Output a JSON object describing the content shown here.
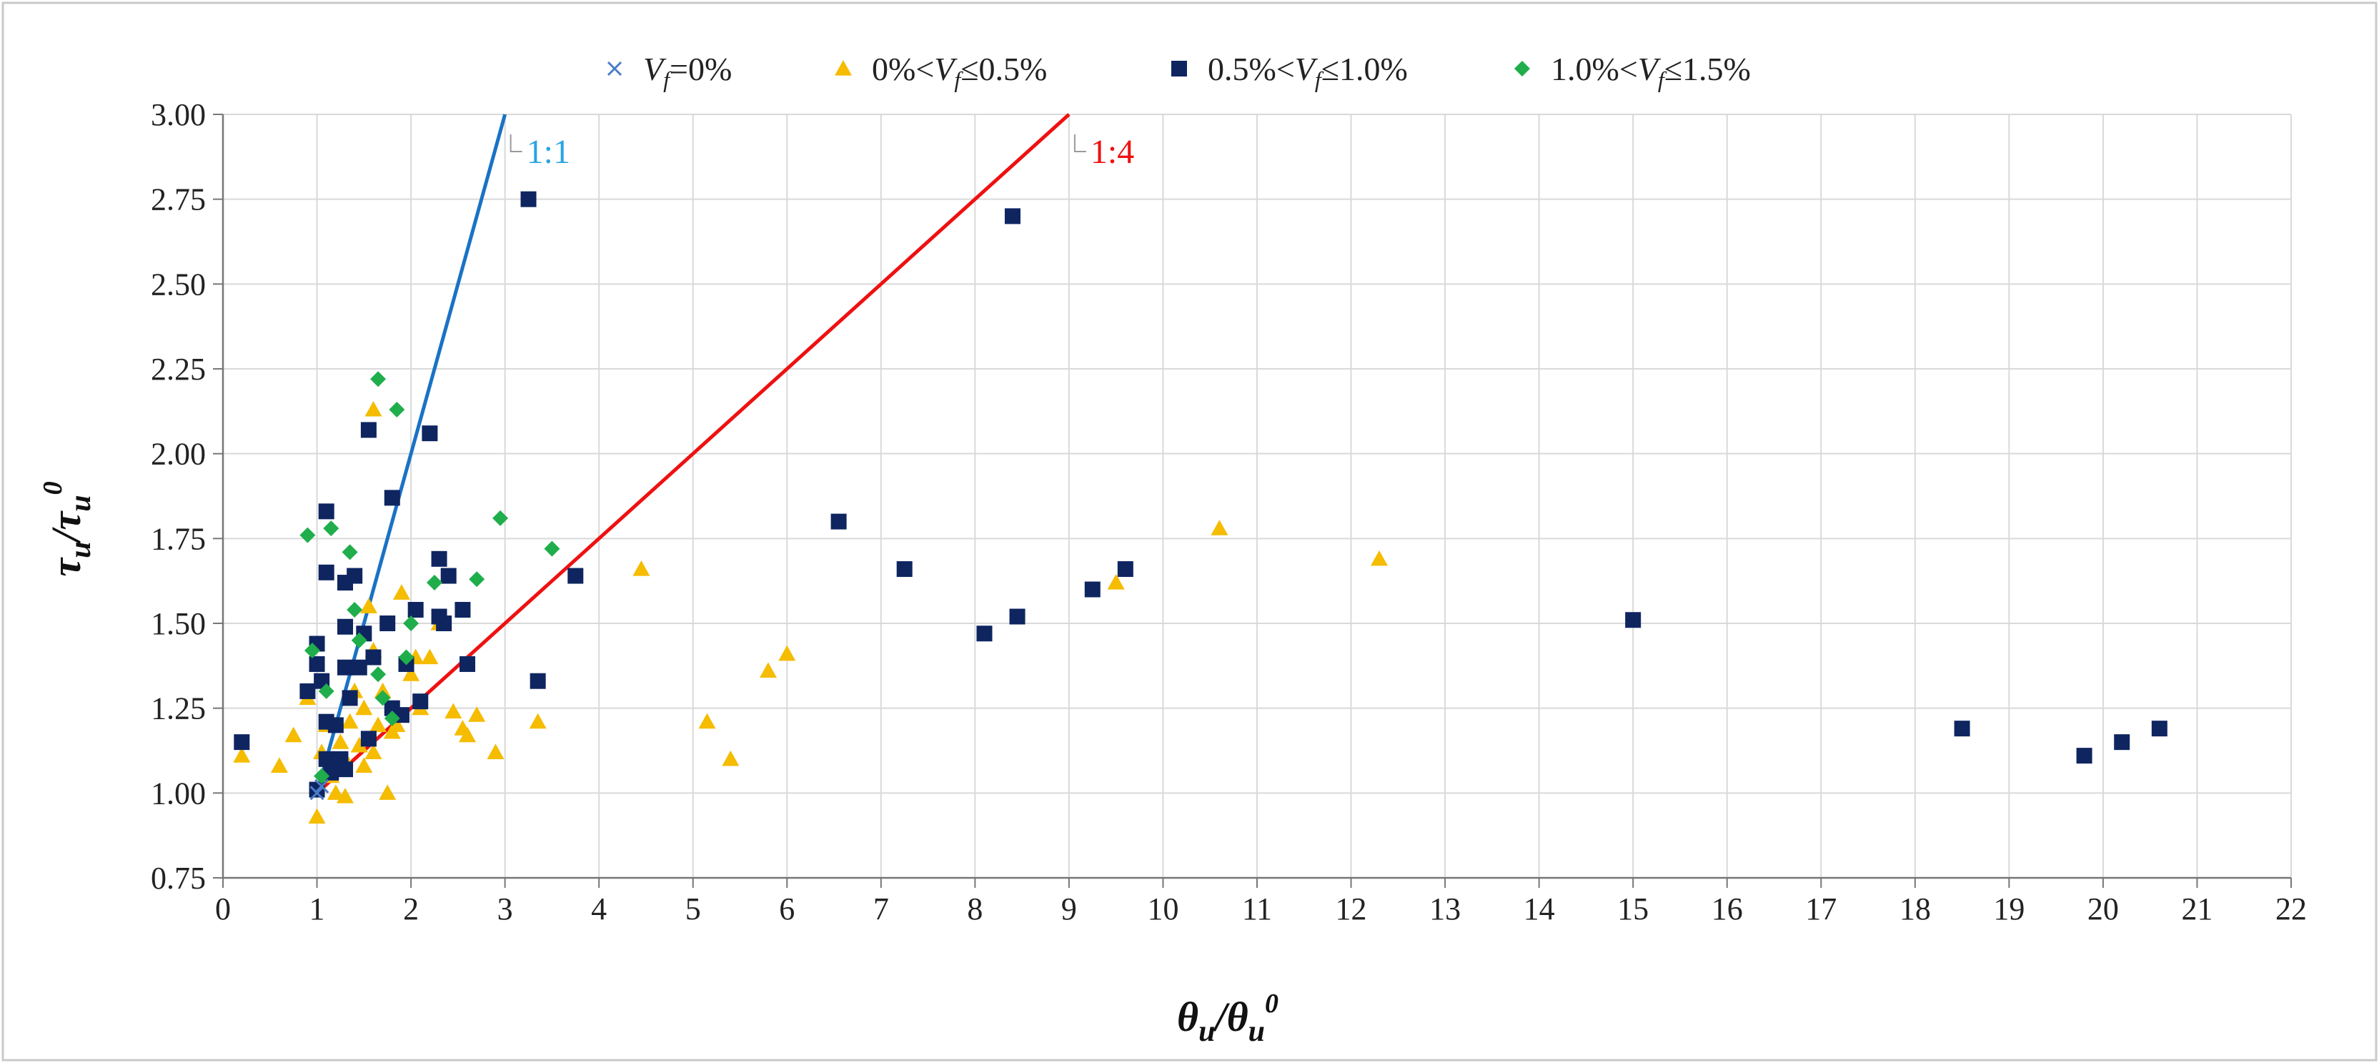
{
  "chart_data": {
    "type": "scatter",
    "title": "",
    "xlabel": "θu/θu0",
    "ylabel": "τu/τu0",
    "xlim": [
      0,
      22
    ],
    "ylim": [
      0.75,
      3.0
    ],
    "x_ticks": [
      "0",
      "1",
      "2",
      "3",
      "4",
      "5",
      "6",
      "7",
      "8",
      "9",
      "10",
      "11",
      "12",
      "13",
      "14",
      "15",
      "16",
      "17",
      "18",
      "19",
      "20",
      "21",
      "22"
    ],
    "y_ticks": [
      "0.75",
      "1.00",
      "1.25",
      "1.50",
      "1.75",
      "2.00",
      "2.25",
      "2.50",
      "2.75",
      "3.00"
    ],
    "grid": true,
    "legend_position": "top",
    "legend": [
      {
        "pre": "",
        "var": "V",
        "sub": "f",
        "post": "=0%",
        "series": "vf0"
      },
      {
        "pre": "0%<",
        "var": "V",
        "sub": "f",
        "post": "≤0.5%",
        "series": "vf05"
      },
      {
        "pre": "0.5%<",
        "var": "V",
        "sub": "f",
        "post": "≤1.0%",
        "series": "vf10"
      },
      {
        "pre": "1.0%<",
        "var": "V",
        "sub": "f",
        "post": "≤1.5%",
        "series": "vf15"
      }
    ],
    "reference_lines": [
      {
        "label": "1:1",
        "color": "#1a72c4",
        "label_color": "#29a5e0",
        "x": [
          1.0,
          3.0
        ],
        "y": [
          1.0,
          3.0
        ]
      },
      {
        "label": "1:4",
        "color": "#ee1111",
        "label_color": "#ee1111",
        "x": [
          1.0,
          9.0
        ],
        "y": [
          1.0,
          3.0
        ]
      }
    ],
    "series": [
      {
        "id": "vf0",
        "marker": "x",
        "color": "#4a7cc9",
        "points": [
          [
            1.0,
            1.0
          ],
          [
            1.05,
            1.02
          ]
        ]
      },
      {
        "id": "vf05",
        "marker": "triangle",
        "color": "#f5bc00",
        "points": [
          [
            0.2,
            1.11
          ],
          [
            0.6,
            1.08
          ],
          [
            0.75,
            1.17
          ],
          [
            0.9,
            1.28
          ],
          [
            1.0,
            0.93
          ],
          [
            1.05,
            1.12
          ],
          [
            1.1,
            1.2
          ],
          [
            1.15,
            1.05
          ],
          [
            1.2,
            1.0
          ],
          [
            1.25,
            1.15
          ],
          [
            1.3,
            0.99
          ],
          [
            1.3,
            1.1
          ],
          [
            1.35,
            1.21
          ],
          [
            1.4,
            1.3
          ],
          [
            1.45,
            1.14
          ],
          [
            1.5,
            1.08
          ],
          [
            1.5,
            1.25
          ],
          [
            1.55,
            1.55
          ],
          [
            1.6,
            1.12
          ],
          [
            1.6,
            1.42
          ],
          [
            1.6,
            2.13
          ],
          [
            1.65,
            1.2
          ],
          [
            1.7,
            1.3
          ],
          [
            1.75,
            1.0
          ],
          [
            1.8,
            1.18
          ],
          [
            1.85,
            1.2
          ],
          [
            1.9,
            1.59
          ],
          [
            2.0,
            1.35
          ],
          [
            2.05,
            1.4
          ],
          [
            2.1,
            1.25
          ],
          [
            2.2,
            1.4
          ],
          [
            2.3,
            1.5
          ],
          [
            2.45,
            1.24
          ],
          [
            2.55,
            1.19
          ],
          [
            2.6,
            1.17
          ],
          [
            2.7,
            1.23
          ],
          [
            2.9,
            1.12
          ],
          [
            3.35,
            1.21
          ],
          [
            4.45,
            1.66
          ],
          [
            5.15,
            1.21
          ],
          [
            5.4,
            1.1
          ],
          [
            5.8,
            1.36
          ],
          [
            6.0,
            1.41
          ],
          [
            9.5,
            1.62
          ],
          [
            10.6,
            1.78
          ],
          [
            12.3,
            1.69
          ]
        ]
      },
      {
        "id": "vf10",
        "marker": "square",
        "color": "#0e2560",
        "points": [
          [
            0.2,
            1.15
          ],
          [
            0.9,
            1.3
          ],
          [
            1.0,
            1.01
          ],
          [
            1.0,
            1.38
          ],
          [
            1.0,
            1.44
          ],
          [
            1.05,
            1.33
          ],
          [
            1.1,
            1.1
          ],
          [
            1.1,
            1.21
          ],
          [
            1.1,
            1.65
          ],
          [
            1.1,
            1.83
          ],
          [
            1.15,
            1.06
          ],
          [
            1.2,
            1.2
          ],
          [
            1.25,
            1.1
          ],
          [
            1.3,
            1.07
          ],
          [
            1.3,
            1.37
          ],
          [
            1.3,
            1.49
          ],
          [
            1.3,
            1.62
          ],
          [
            1.35,
            1.28
          ],
          [
            1.4,
            1.64
          ],
          [
            1.45,
            1.37
          ],
          [
            1.5,
            1.47
          ],
          [
            1.55,
            1.16
          ],
          [
            1.55,
            2.07
          ],
          [
            1.6,
            1.4
          ],
          [
            1.75,
            1.5
          ],
          [
            1.8,
            1.25
          ],
          [
            1.8,
            1.87
          ],
          [
            1.9,
            1.23
          ],
          [
            1.95,
            1.38
          ],
          [
            2.05,
            1.54
          ],
          [
            2.1,
            1.27
          ],
          [
            2.2,
            2.06
          ],
          [
            2.3,
            1.52
          ],
          [
            2.3,
            1.69
          ],
          [
            2.35,
            1.5
          ],
          [
            2.4,
            1.64
          ],
          [
            2.55,
            1.54
          ],
          [
            2.6,
            1.38
          ],
          [
            3.25,
            2.75
          ],
          [
            3.35,
            1.33
          ],
          [
            3.75,
            1.64
          ],
          [
            6.55,
            1.8
          ],
          [
            7.25,
            1.66
          ],
          [
            8.1,
            1.47
          ],
          [
            8.4,
            2.7
          ],
          [
            8.45,
            1.52
          ],
          [
            9.25,
            1.6
          ],
          [
            9.6,
            1.66
          ],
          [
            15.0,
            1.51
          ],
          [
            18.5,
            1.19
          ],
          [
            19.8,
            1.11
          ],
          [
            20.2,
            1.15
          ],
          [
            20.6,
            1.19
          ]
        ]
      },
      {
        "id": "vf15",
        "marker": "diamond",
        "color": "#1fae4b",
        "points": [
          [
            0.9,
            1.76
          ],
          [
            0.95,
            1.42
          ],
          [
            1.05,
            1.05
          ],
          [
            1.1,
            1.3
          ],
          [
            1.15,
            1.78
          ],
          [
            1.35,
            1.71
          ],
          [
            1.4,
            1.54
          ],
          [
            1.45,
            1.45
          ],
          [
            1.65,
            1.35
          ],
          [
            1.65,
            2.22
          ],
          [
            1.7,
            1.28
          ],
          [
            1.8,
            1.22
          ],
          [
            1.85,
            2.13
          ],
          [
            1.95,
            1.4
          ],
          [
            2.0,
            1.5
          ],
          [
            2.25,
            1.62
          ],
          [
            2.7,
            1.63
          ],
          [
            2.95,
            1.81
          ],
          [
            3.5,
            1.72
          ]
        ]
      }
    ]
  }
}
